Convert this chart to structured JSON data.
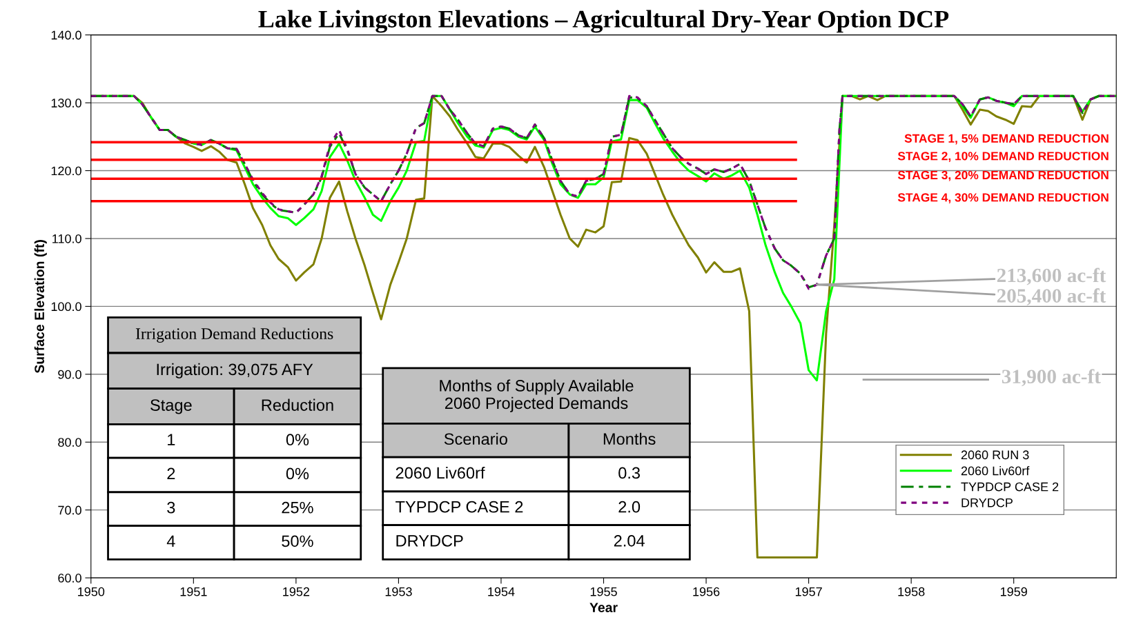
{
  "chart_data": {
    "type": "line",
    "title": "Lake Livingston Elevations – Agricultural Dry-Year Option DCP",
    "xlabel": "Year",
    "ylabel": "Surface Elevation (ft)",
    "xlim": [
      1950,
      1960
    ],
    "xticks": [
      1950,
      1951,
      1952,
      1953,
      1954,
      1955,
      1956,
      1957,
      1958,
      1959
    ],
    "ylim": [
      60,
      140
    ],
    "yticks": [
      {
        "value": 60,
        "label": "60.0"
      },
      {
        "value": 70,
        "label": "70.0"
      },
      {
        "value": 80,
        "label": "80.0"
      },
      {
        "value": 90,
        "label": "90.0"
      },
      {
        "value": 100,
        "label": "100.0"
      },
      {
        "value": 110,
        "label": "110.0"
      },
      {
        "value": 120,
        "label": "120.0"
      },
      {
        "value": 130,
        "label": "130.0"
      },
      {
        "value": 140,
        "label": "140.0"
      }
    ],
    "grid": "y",
    "legend": "bottom right",
    "series": [
      {
        "name": "2060 RUN 3",
        "color": "#808000",
        "line_style": "solid",
        "x": [
          1950.0,
          1950.42,
          1950.5,
          1950.58,
          1950.67,
          1950.75,
          1950.83,
          1950.92,
          1951.0,
          1951.08,
          1951.17,
          1951.25,
          1951.33,
          1951.42,
          1951.5,
          1951.58,
          1951.67,
          1951.75,
          1951.83,
          1951.92,
          1952.0,
          1952.08,
          1952.17,
          1952.25,
          1952.33,
          1952.42,
          1952.5,
          1952.58,
          1952.67,
          1952.75,
          1952.83,
          1952.92,
          1953.0,
          1953.08,
          1953.17,
          1953.25,
          1953.33,
          1953.42,
          1953.5,
          1953.58,
          1953.67,
          1953.75,
          1953.83,
          1953.92,
          1954.0,
          1954.08,
          1954.17,
          1954.25,
          1954.33,
          1954.42,
          1954.5,
          1954.58,
          1954.67,
          1954.75,
          1954.83,
          1954.92,
          1955.0,
          1955.08,
          1955.17,
          1955.25,
          1955.33,
          1955.42,
          1955.5,
          1955.58,
          1955.67,
          1955.75,
          1955.83,
          1955.92,
          1956.0,
          1956.08,
          1956.17,
          1956.25,
          1956.33,
          1956.42,
          1956.5,
          1957.08,
          1957.17,
          1957.25,
          1957.33,
          1957.42,
          1957.5,
          1957.58,
          1957.67,
          1957.75,
          1958.42,
          1958.5,
          1958.58,
          1958.67,
          1958.75,
          1958.83,
          1958.92,
          1959.0,
          1959.08,
          1959.17,
          1959.25,
          1959.58,
          1959.67,
          1959.75,
          1959.83,
          1960.0
        ],
        "values": [
          131,
          131,
          130,
          128,
          126,
          126,
          125,
          124,
          123.5,
          122.9,
          123.6,
          122.8,
          121.6,
          121.2,
          118,
          114.5,
          112,
          109,
          107,
          105.8,
          103.8,
          105,
          106.2,
          110,
          116,
          118.4,
          114,
          110,
          106,
          102,
          98.1,
          103.2,
          106.5,
          110,
          115.7,
          115.9,
          131,
          129.5,
          128,
          126,
          124,
          122,
          121.8,
          124,
          124,
          123.5,
          122.2,
          121.2,
          123.5,
          120.5,
          117,
          113.5,
          110,
          108.8,
          111.3,
          110.9,
          111.8,
          118.3,
          118.4,
          124.8,
          124.5,
          122.5,
          119.5,
          116.5,
          113.5,
          111.2,
          109,
          107.2,
          105,
          106.5,
          105.1,
          105.1,
          105.6,
          99.3,
          63,
          63,
          96,
          112,
          131,
          131,
          130.5,
          131,
          130.4,
          131,
          131,
          129,
          126.8,
          129,
          128.8,
          128,
          127.5,
          126.9,
          129.5,
          129.4,
          131,
          131,
          127.5,
          130.5,
          131,
          131
        ]
      },
      {
        "name": "2060 Liv60rf",
        "color": "#00ff00",
        "line_style": "solid",
        "x": [
          1950.0,
          1950.42,
          1950.5,
          1950.58,
          1950.67,
          1950.75,
          1950.83,
          1950.92,
          1951.0,
          1951.08,
          1951.17,
          1951.25,
          1951.33,
          1951.42,
          1951.5,
          1951.58,
          1951.67,
          1951.75,
          1951.83,
          1951.92,
          1952.0,
          1952.08,
          1952.17,
          1952.25,
          1952.33,
          1952.42,
          1952.5,
          1952.58,
          1952.67,
          1952.75,
          1952.83,
          1952.92,
          1953.0,
          1953.08,
          1953.17,
          1953.25,
          1953.33,
          1953.42,
          1953.5,
          1953.58,
          1953.67,
          1953.75,
          1953.83,
          1953.92,
          1954.0,
          1954.08,
          1954.17,
          1954.25,
          1954.33,
          1954.42,
          1954.5,
          1954.58,
          1954.67,
          1954.75,
          1954.83,
          1954.92,
          1955.0,
          1955.08,
          1955.17,
          1955.25,
          1955.33,
          1955.42,
          1955.5,
          1955.58,
          1955.67,
          1955.75,
          1955.83,
          1955.92,
          1956.0,
          1956.08,
          1956.17,
          1956.25,
          1956.33,
          1956.42,
          1956.5,
          1956.58,
          1956.67,
          1956.75,
          1956.83,
          1956.92,
          1957.0,
          1957.08,
          1957.17,
          1957.25,
          1957.33,
          1958.42,
          1958.5,
          1958.58,
          1958.67,
          1958.75,
          1958.83,
          1958.92,
          1959.0,
          1959.08,
          1959.58,
          1959.67,
          1959.75,
          1959.83,
          1960.0
        ],
        "values": [
          131,
          131,
          129.8,
          128,
          126,
          126,
          125,
          124.5,
          124,
          123.8,
          124.5,
          124,
          123.3,
          123,
          120.5,
          118,
          116,
          114.5,
          113.3,
          113,
          112,
          113,
          114.3,
          117,
          122,
          124,
          121.5,
          118.5,
          116,
          113.5,
          112.6,
          115.5,
          117.5,
          120,
          124.2,
          124.4,
          131,
          131,
          129,
          127,
          125,
          123.7,
          123.4,
          126,
          126.3,
          126,
          125,
          124.6,
          126.5,
          124.5,
          121,
          118,
          116.5,
          116,
          118,
          118,
          119,
          124.3,
          124.6,
          130.4,
          130.4,
          129.3,
          127,
          124.8,
          122.8,
          121.2,
          120,
          119.2,
          118.4,
          119.6,
          118.8,
          119.3,
          120,
          117.5,
          113.5,
          109,
          105,
          102,
          100,
          97.5,
          90.6,
          89.1,
          99.3,
          104,
          131,
          131,
          129.5,
          127.8,
          130.5,
          130.8,
          130.3,
          130,
          129.5,
          131,
          131,
          128.7,
          130.5,
          131,
          131
        ]
      },
      {
        "name": "TYPDCP CASE 2",
        "color": "#008000",
        "line_style": "dashed",
        "x": [
          1950.0,
          1950.42,
          1950.5,
          1950.58,
          1950.67,
          1950.75,
          1950.83,
          1950.92,
          1951.0,
          1951.08,
          1951.17,
          1951.25,
          1951.33,
          1951.42,
          1951.5,
          1951.58,
          1951.67,
          1951.75,
          1951.83,
          1951.92,
          1952.0,
          1952.08,
          1952.17,
          1952.25,
          1952.33,
          1952.42,
          1952.5,
          1952.58,
          1952.67,
          1952.75,
          1952.83,
          1952.92,
          1953.0,
          1953.08,
          1953.17,
          1953.25,
          1953.33,
          1953.42,
          1953.5,
          1953.58,
          1953.67,
          1953.75,
          1953.83,
          1953.92,
          1954.0,
          1954.08,
          1954.17,
          1954.25,
          1954.33,
          1954.42,
          1954.5,
          1954.58,
          1954.67,
          1954.75,
          1954.83,
          1954.92,
          1955.0,
          1955.08,
          1955.17,
          1955.25,
          1955.33,
          1955.42,
          1955.5,
          1955.58,
          1955.67,
          1955.75,
          1955.83,
          1955.92,
          1956.0,
          1956.08,
          1956.17,
          1956.25,
          1956.33,
          1956.42,
          1956.5,
          1956.58,
          1956.67,
          1956.75,
          1956.83,
          1956.92,
          1957.0,
          1957.08,
          1957.17,
          1957.25,
          1957.3,
          1957.33,
          1958.42,
          1958.5,
          1958.58,
          1958.67,
          1958.75,
          1958.83,
          1958.92,
          1959.0,
          1959.08,
          1959.58,
          1959.67,
          1959.75,
          1959.83,
          1960.0
        ],
        "values": [
          131,
          131,
          129.8,
          128,
          126,
          126,
          125,
          124.5,
          124,
          123.8,
          124.5,
          124,
          123.3,
          123.2,
          121,
          118.5,
          116.5,
          115.2,
          114.2,
          114,
          113.8,
          115,
          116.5,
          119,
          123.5,
          125.5,
          123,
          119.5,
          117.5,
          116.5,
          115.5,
          118,
          120,
          122.5,
          126.3,
          127,
          131,
          131,
          129,
          127.5,
          125.5,
          124,
          123.6,
          126.2,
          126.5,
          126.2,
          125.2,
          124.8,
          126.8,
          124.8,
          121.5,
          118.5,
          116.5,
          116.2,
          118.5,
          118.8,
          119.5,
          125,
          125.3,
          130.8,
          130.7,
          129.5,
          127.5,
          125.5,
          123.3,
          122,
          121,
          120.3,
          119.5,
          120.2,
          119.8,
          120.3,
          121,
          118.5,
          115,
          111.5,
          108.5,
          106.8,
          106,
          104.8,
          102.8,
          103.2,
          107.5,
          110,
          126,
          131,
          131,
          129.8,
          128,
          130.5,
          130.8,
          130.3,
          130,
          129.8,
          131,
          131,
          128.5,
          130.5,
          131,
          131
        ]
      },
      {
        "name": "DRYDCP",
        "color": "#800080",
        "line_style": "dotted",
        "x": [
          1950.0,
          1950.42,
          1950.5,
          1950.58,
          1950.67,
          1950.75,
          1950.83,
          1950.92,
          1951.0,
          1951.08,
          1951.17,
          1951.25,
          1951.33,
          1951.42,
          1951.5,
          1951.58,
          1951.67,
          1951.75,
          1951.83,
          1951.92,
          1952.0,
          1952.08,
          1952.17,
          1952.25,
          1952.33,
          1952.42,
          1952.5,
          1952.58,
          1952.67,
          1952.75,
          1952.83,
          1952.92,
          1953.0,
          1953.08,
          1953.17,
          1953.25,
          1953.33,
          1953.42,
          1953.5,
          1953.58,
          1953.67,
          1953.75,
          1953.83,
          1953.92,
          1954.0,
          1954.08,
          1954.17,
          1954.25,
          1954.33,
          1954.42,
          1954.5,
          1954.58,
          1954.67,
          1954.75,
          1954.83,
          1954.92,
          1955.0,
          1955.08,
          1955.17,
          1955.25,
          1955.33,
          1955.42,
          1955.5,
          1955.58,
          1955.67,
          1955.75,
          1955.83,
          1955.92,
          1956.0,
          1956.08,
          1956.17,
          1956.25,
          1956.33,
          1956.42,
          1956.5,
          1956.58,
          1956.67,
          1956.75,
          1956.83,
          1956.92,
          1957.0,
          1957.08,
          1957.17,
          1957.25,
          1957.3,
          1957.33,
          1958.42,
          1958.5,
          1958.58,
          1958.67,
          1958.75,
          1958.83,
          1958.92,
          1959.0,
          1959.08,
          1959.58,
          1959.67,
          1959.75,
          1959.83,
          1960.0
        ],
        "values": [
          131,
          131,
          129.8,
          128,
          126,
          126,
          125,
          124.5,
          124,
          123.8,
          124.5,
          124,
          123.3,
          123.2,
          121,
          118.7,
          116.7,
          115.3,
          114.3,
          114,
          113.8,
          115,
          116.5,
          119.2,
          123.8,
          126,
          123.2,
          119.5,
          117.5,
          116.5,
          115.5,
          118,
          120,
          122.5,
          126.3,
          127,
          131,
          131,
          129,
          127.5,
          125.5,
          124,
          123.6,
          126.2,
          126.5,
          126.2,
          125.2,
          124.8,
          126.8,
          124.8,
          121.5,
          118.5,
          116.5,
          116.2,
          118.5,
          118.8,
          119.5,
          125,
          125.3,
          131,
          130.8,
          129.5,
          127.5,
          125.5,
          123.3,
          122,
          121,
          120.3,
          119.5,
          120.2,
          119.8,
          120.3,
          121,
          118.5,
          115,
          111.5,
          108.5,
          106.8,
          106,
          104.8,
          102.6,
          103.2,
          107.5,
          110,
          126,
          131,
          131,
          129.8,
          128,
          130.5,
          130.8,
          130.3,
          130,
          129.8,
          131,
          131,
          128.5,
          130.5,
          131,
          131
        ]
      }
    ],
    "ref_lines": [
      {
        "axis": "y",
        "value": 124.2,
        "label": "STAGE 1, 5% DEMAND REDUCTION",
        "color": "#ff0000"
      },
      {
        "axis": "y",
        "value": 121.6,
        "label": "STAGE 2, 10% DEMAND REDUCTION",
        "color": "#ff0000"
      },
      {
        "axis": "y",
        "value": 118.8,
        "label": "STAGE 3, 20% DEMAND REDUCTION",
        "color": "#ff0000"
      },
      {
        "axis": "y",
        "value": 115.5,
        "label": "STAGE 4, 30% DEMAND REDUCTION",
        "color": "#ff0000"
      }
    ],
    "annotations": [
      {
        "text": "213,600 ac-ft",
        "x": 1957.08,
        "y": 103.2
      },
      {
        "text": "205,400 ac-ft",
        "x": 1957.08,
        "y": 103.2
      },
      "31,900 ac-ft",
      "Irrigation Demand Reductions",
      "Irrigation: 39,075 AFY",
      "Stage",
      "Reduction",
      "1",
      "0%",
      "2",
      "0%",
      "3",
      "25%",
      "4",
      "50%",
      "Months of Supply Available\n2060 Projected Demands",
      "Scenario",
      "Months",
      "2060 Liv60rf",
      "0.3",
      "TYPDCP CASE 2",
      "2.0",
      "DRYDCP",
      "2.04"
    ]
  }
}
